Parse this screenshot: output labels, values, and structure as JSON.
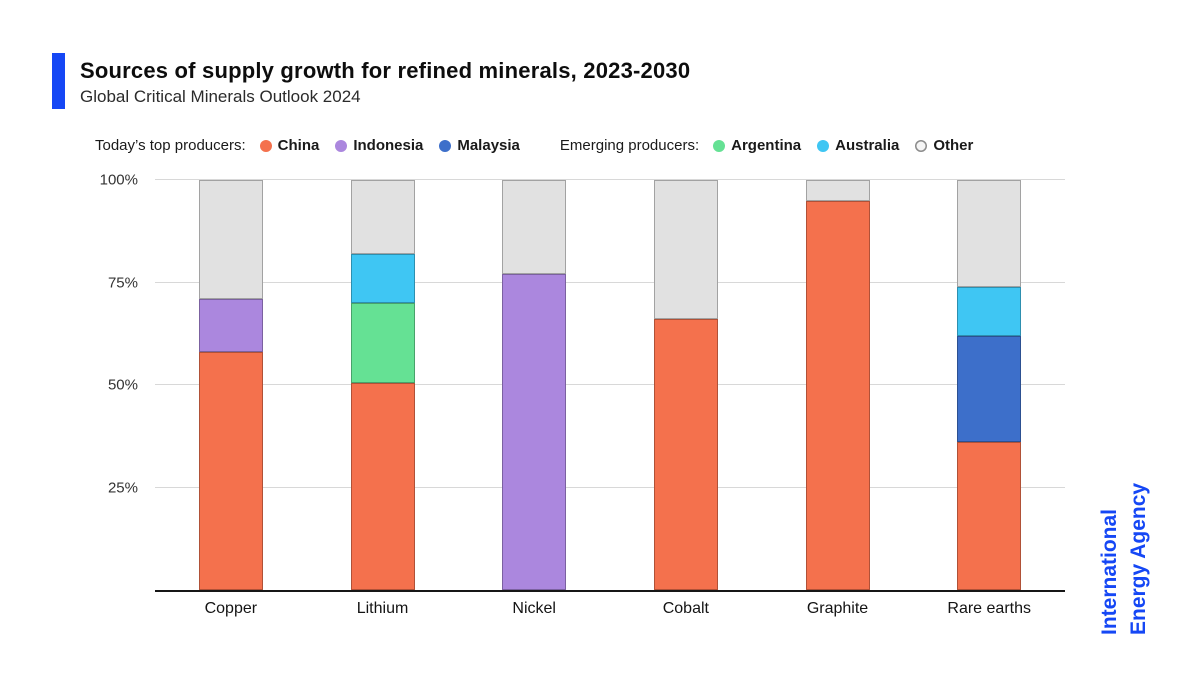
{
  "header": {
    "title": "Sources of supply growth for refined minerals, 2023-2030",
    "subtitle": "Global Critical Minerals Outlook 2024"
  },
  "legend": {
    "groups": [
      {
        "label": "Today’s top producers:",
        "items": [
          {
            "label": "China",
            "color": "#f4714d"
          },
          {
            "label": "Indonesia",
            "color": "#ab87de"
          },
          {
            "label": "Malaysia",
            "color": "#3d6fca"
          }
        ]
      },
      {
        "label": "Emerging producers:",
        "items": [
          {
            "label": "Argentina",
            "color": "#65e194"
          },
          {
            "label": "Australia",
            "color": "#3fc6f3"
          },
          {
            "label": "Other",
            "color": "#f5f5f5",
            "border": "#8c8c8c"
          }
        ]
      }
    ]
  },
  "brand": {
    "line1": "International",
    "line2": "Energy Agency",
    "color": "#1547f5"
  },
  "chart_data": {
    "type": "bar",
    "stacked": true,
    "title": "Sources of supply growth for refined minerals, 2023-2030",
    "xlabel": "",
    "ylabel": "",
    "ylim": [
      0,
      100
    ],
    "grid": true,
    "legend_position": "top",
    "ytick_values": [
      25,
      50,
      75,
      100
    ],
    "ytick_labels": [
      "25%",
      "50%",
      "75%",
      "100%"
    ],
    "categories": [
      "Copper",
      "Lithium",
      "Nickel",
      "Cobalt",
      "Graphite",
      "Rare earths"
    ],
    "series": [
      {
        "name": "China",
        "color": "#f4714d",
        "values": [
          58,
          50.5,
          0,
          66,
          95,
          36
        ]
      },
      {
        "name": "Indonesia",
        "color": "#ab87de",
        "values": [
          13,
          0,
          77,
          0,
          0,
          0
        ]
      },
      {
        "name": "Malaysia",
        "color": "#3d6fca",
        "values": [
          0,
          0,
          0,
          0,
          0,
          26
        ]
      },
      {
        "name": "Argentina",
        "color": "#65e194",
        "values": [
          0,
          19.5,
          0,
          0,
          0,
          0
        ]
      },
      {
        "name": "Australia",
        "color": "#3fc6f3",
        "values": [
          0,
          12,
          0,
          0,
          0,
          12
        ]
      },
      {
        "name": "Other",
        "color": "#e1e1e1",
        "values": [
          29,
          18,
          23,
          34,
          5,
          26
        ]
      }
    ]
  }
}
